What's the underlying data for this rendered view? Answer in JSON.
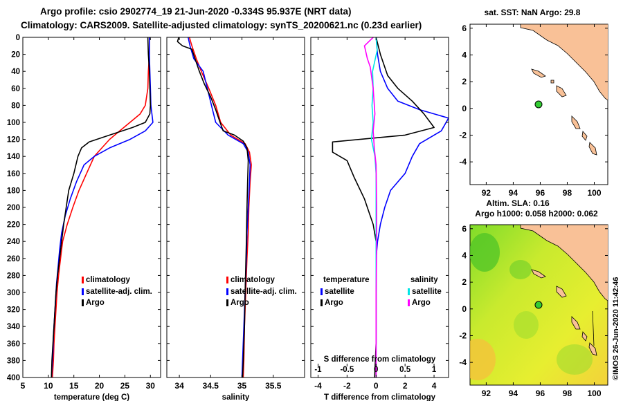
{
  "header": {
    "line1": "Argo profile: csio 2902774_19 21-Jun-2020 -0.334S 95.937E (NRT data)",
    "line2": "Climatology: CARS2009. Satellite-adjusted climatology: synTS_20200621.nc (0.23d earlier)"
  },
  "map_sst": {
    "title": "sat. SST: NaN Argo: 29.8",
    "x_ticks": [
      "92",
      "94",
      "96",
      "98",
      "100"
    ],
    "y_ticks": [
      "-4",
      "-2",
      "0",
      "2",
      "4",
      "6"
    ]
  },
  "map_sla": {
    "title1": "Altim. SLA: 0.16",
    "title2": "Argo h1000: 0.058 h2000: 0.062",
    "x_ticks": [
      "92",
      "94",
      "96",
      "98",
      "100"
    ],
    "y_ticks": [
      "-4",
      "-2",
      "0",
      "2",
      "4",
      "6"
    ]
  },
  "credit": "©IMOS 26-Jun-2020 11:42:46",
  "colors": {
    "climatology": "#ff0000",
    "satellite": "#0000ff",
    "argo": "#000000",
    "sal_diff": "#ff00ff",
    "sat_sal_diff": "#00e5e5",
    "land": "#f9c197",
    "marker": "#33cc33"
  },
  "chart_data": [
    {
      "type": "line",
      "xlabel": "temperature (deg C)",
      "ylabel": "",
      "xlim": [
        5,
        32
      ],
      "ylim": [
        400,
        0
      ],
      "x_ticks": [
        "5",
        "10",
        "15",
        "20",
        "25",
        "30"
      ],
      "x_tick_values": [
        5,
        10,
        15,
        20,
        25,
        30
      ],
      "y_ticks": [
        "0",
        "20",
        "40",
        "60",
        "80",
        "100",
        "120",
        "140",
        "160",
        "180",
        "200",
        "220",
        "240",
        "260",
        "280",
        "300",
        "320",
        "340",
        "360",
        "380",
        "400"
      ],
      "legend": [
        "climatology",
        "satellite-adj. clim.",
        "Argo"
      ],
      "series": [
        {
          "name": "climatology",
          "color": "#ff0000",
          "points": [
            [
              29.8,
              0
            ],
            [
              29.8,
              20
            ],
            [
              29.6,
              40
            ],
            [
              29.5,
              60
            ],
            [
              29,
              80
            ],
            [
              28,
              90
            ],
            [
              26,
              100
            ],
            [
              24,
              110
            ],
            [
              22,
              120
            ],
            [
              20.5,
              130
            ],
            [
              19,
              140
            ],
            [
              17.5,
              160
            ],
            [
              16,
              180
            ],
            [
              14.8,
              200
            ],
            [
              13.7,
              220
            ],
            [
              12.8,
              240
            ],
            [
              12.4,
              260
            ],
            [
              12,
              280
            ],
            [
              11.7,
              300
            ],
            [
              11.5,
              320
            ],
            [
              11.3,
              340
            ],
            [
              11.1,
              360
            ],
            [
              11,
              380
            ],
            [
              10.8,
              400
            ]
          ]
        },
        {
          "name": "satellite-adj. clim.",
          "color": "#0000ff",
          "points": [
            [
              29.8,
              0
            ],
            [
              29.8,
              20
            ],
            [
              29.9,
              40
            ],
            [
              30,
              60
            ],
            [
              30.1,
              80
            ],
            [
              30.5,
              100
            ],
            [
              29,
              110
            ],
            [
              26,
              120
            ],
            [
              22,
              130
            ],
            [
              19,
              140
            ],
            [
              17,
              150
            ],
            [
              15.5,
              170
            ],
            [
              14.3,
              190
            ],
            [
              13.3,
              210
            ],
            [
              12.6,
              230
            ],
            [
              12.2,
              250
            ],
            [
              11.9,
              270
            ],
            [
              11.6,
              290
            ],
            [
              11.4,
              310
            ],
            [
              11.2,
              330
            ],
            [
              11,
              350
            ],
            [
              10.9,
              370
            ],
            [
              10.7,
              390
            ],
            [
              10.6,
              400
            ]
          ]
        },
        {
          "name": "Argo",
          "color": "#000000",
          "points": [
            [
              29.5,
              0
            ],
            [
              29.6,
              20
            ],
            [
              29.8,
              40
            ],
            [
              29.9,
              60
            ],
            [
              30,
              80
            ],
            [
              29.9,
              90
            ],
            [
              29,
              100
            ],
            [
              26.5,
              106
            ],
            [
              22,
              115
            ],
            [
              18,
              123
            ],
            [
              16.5,
              130
            ],
            [
              15.8,
              140
            ],
            [
              15,
              160
            ],
            [
              14,
              180
            ],
            [
              13.5,
              200
            ],
            [
              13,
              220
            ],
            [
              12.6,
              240
            ],
            [
              12.2,
              260
            ],
            [
              11.8,
              280
            ],
            [
              11.5,
              300
            ],
            [
              11.3,
              320
            ],
            [
              11.1,
              340
            ],
            [
              10.9,
              360
            ],
            [
              10.7,
              380
            ],
            [
              10.6,
              400
            ]
          ]
        }
      ]
    },
    {
      "type": "line",
      "xlabel": "salinity",
      "ylabel": "",
      "xlim": [
        33.8,
        36.0
      ],
      "ylim": [
        400,
        0
      ],
      "x_ticks": [
        "34",
        "34.5",
        "35",
        "35.5"
      ],
      "x_tick_values": [
        34,
        34.5,
        35,
        35.5
      ],
      "legend": [
        "climatology",
        "satellite-adj. clim.",
        "Argo"
      ],
      "series": [
        {
          "name": "climatology",
          "color": "#ff0000",
          "points": [
            [
              34.16,
              0
            ],
            [
              34.2,
              10
            ],
            [
              34.27,
              25
            ],
            [
              34.35,
              40
            ],
            [
              34.47,
              60
            ],
            [
              34.58,
              80
            ],
            [
              34.66,
              100
            ],
            [
              34.82,
              115
            ],
            [
              35.05,
              125
            ],
            [
              35.12,
              135
            ],
            [
              35.15,
              150
            ],
            [
              35.13,
              170
            ],
            [
              35.11,
              200
            ],
            [
              35.1,
              230
            ],
            [
              35.08,
              260
            ],
            [
              35.06,
              300
            ],
            [
              35.04,
              340
            ],
            [
              35.03,
              380
            ],
            [
              35.02,
              400
            ]
          ]
        },
        {
          "name": "satellite-adj. clim.",
          "color": "#0000ff",
          "points": [
            [
              34.14,
              0
            ],
            [
              34.17,
              10
            ],
            [
              34.23,
              25
            ],
            [
              34.38,
              40
            ],
            [
              34.43,
              55
            ],
            [
              34.48,
              70
            ],
            [
              34.53,
              85
            ],
            [
              34.58,
              100
            ],
            [
              34.78,
              115
            ],
            [
              35.02,
              125
            ],
            [
              35.1,
              135
            ],
            [
              35.13,
              150
            ],
            [
              35.12,
              170
            ],
            [
              35.1,
              200
            ],
            [
              35.08,
              230
            ],
            [
              35.07,
              260
            ],
            [
              35.05,
              300
            ],
            [
              35.03,
              340
            ],
            [
              35.01,
              380
            ],
            [
              35.0,
              400
            ]
          ]
        },
        {
          "name": "Argo",
          "color": "#000000",
          "points": [
            [
              33.99,
              0
            ],
            [
              33.97,
              5
            ],
            [
              34.05,
              10
            ],
            [
              34.2,
              14
            ],
            [
              34.25,
              25
            ],
            [
              34.32,
              40
            ],
            [
              34.4,
              55
            ],
            [
              34.5,
              70
            ],
            [
              34.58,
              85
            ],
            [
              34.65,
              100
            ],
            [
              34.7,
              110
            ],
            [
              34.88,
              115
            ],
            [
              35.02,
              122
            ],
            [
              35.08,
              130
            ],
            [
              35.1,
              145
            ],
            [
              35.09,
              170
            ],
            [
              35.08,
              200
            ],
            [
              35.07,
              240
            ],
            [
              35.06,
              270
            ],
            [
              35.05,
              300
            ],
            [
              35.04,
              340
            ],
            [
              35.02,
              380
            ],
            [
              35.01,
              400
            ]
          ]
        }
      ]
    },
    {
      "type": "line",
      "xlabel": "T difference from climatology",
      "xlabel2": "S difference from climatology",
      "xlim": [
        -4.5,
        5
      ],
      "ylim": [
        400,
        0
      ],
      "x_ticks": [
        "-4",
        "-2",
        "0",
        "2",
        "4"
      ],
      "x_tick_values": [
        -4,
        -2,
        0,
        2,
        4
      ],
      "x2_ticks": [
        "-1",
        "-0.5",
        "0",
        "0.5",
        "1"
      ],
      "x2_tick_values": [
        -1,
        -0.5,
        0,
        0.5,
        1
      ],
      "x2lim": [
        -1.125,
        1.25
      ],
      "legend": {
        "temperature_header": "temperature",
        "salinity_header": "salinity",
        "left": [
          "satellite",
          "Argo"
        ],
        "right": [
          "satellite",
          "Argo"
        ]
      },
      "series": [
        {
          "name": "T satellite",
          "color": "#0000ff",
          "points": [
            [
              0,
              0
            ],
            [
              0.1,
              20
            ],
            [
              0.3,
              40
            ],
            [
              0.8,
              60
            ],
            [
              1.5,
              75
            ],
            [
              3,
              85
            ],
            [
              5,
              95
            ],
            [
              4.5,
              110
            ],
            [
              3,
              125
            ],
            [
              2.5,
              140
            ],
            [
              2,
              160
            ],
            [
              1,
              180
            ],
            [
              0.6,
              200
            ],
            [
              0.3,
              220
            ],
            [
              0.1,
              240
            ],
            [
              0,
              260
            ],
            [
              0,
              300
            ],
            [
              0,
              360
            ],
            [
              0,
              400
            ]
          ]
        },
        {
          "name": "T Argo",
          "color": "#000000",
          "points": [
            [
              0,
              0
            ],
            [
              0.3,
              20
            ],
            [
              0.8,
              45
            ],
            [
              1.5,
              60
            ],
            [
              2.5,
              75
            ],
            [
              3.3,
              90
            ],
            [
              4,
              106
            ],
            [
              2,
              115
            ],
            [
              -3,
              123
            ],
            [
              -3,
              135
            ],
            [
              -2,
              145
            ],
            [
              -1.5,
              165
            ],
            [
              -0.8,
              190
            ],
            [
              -0.2,
              220
            ],
            [
              0,
              240
            ],
            [
              0,
              280
            ],
            [
              0,
              320
            ],
            [
              0,
              360
            ],
            [
              -0.1,
              400
            ]
          ]
        },
        {
          "name": "S satellite",
          "color": "#00e5e5",
          "points": [
            [
              0,
              0
            ],
            [
              0.02,
              15
            ],
            [
              -0.06,
              40
            ],
            [
              -0.05,
              60
            ],
            [
              -0.07,
              80
            ],
            [
              -0.05,
              100
            ],
            [
              -0.08,
              120
            ],
            [
              -0.02,
              140
            ],
            [
              0,
              160
            ],
            [
              0,
              200
            ],
            [
              0,
              250
            ],
            [
              0,
              300
            ]
          ]
        },
        {
          "name": "S Argo",
          "color": "#ff00ff",
          "points": [
            [
              -0.05,
              0
            ],
            [
              -0.2,
              10
            ],
            [
              -0.15,
              25
            ],
            [
              -0.1,
              35
            ],
            [
              -0.05,
              60
            ],
            [
              -0.02,
              90
            ],
            [
              -0.05,
              110
            ],
            [
              -0.03,
              130
            ],
            [
              0,
              150
            ],
            [
              0.01,
              200
            ],
            [
              0.01,
              250
            ],
            [
              0,
              300
            ],
            [
              0,
              350
            ],
            [
              0,
              400
            ]
          ]
        }
      ]
    }
  ]
}
